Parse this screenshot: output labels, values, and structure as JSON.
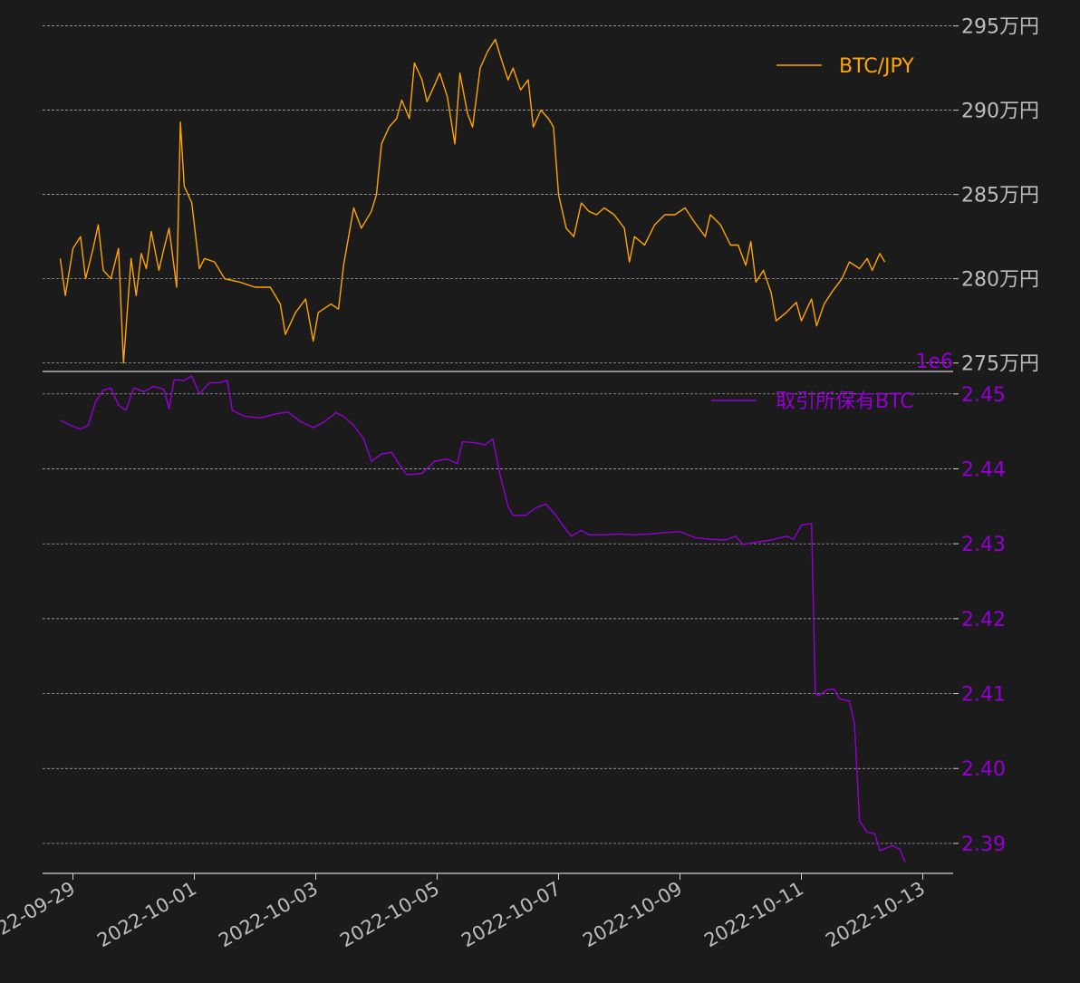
{
  "colors": {
    "background": "#1b1b1b",
    "grid": "#bdbdbd",
    "axis": "#d0d0d0",
    "tick_text": "#bdbdbd",
    "btc_jpy": "#ffa500",
    "exchange_btc": "#9400d3"
  },
  "chart_data": [
    {
      "type": "line",
      "panel": "top",
      "title": "",
      "xlabel": "",
      "ylabel": "",
      "legend_position": "top-right",
      "grid": "horizontal-dashed",
      "x_range": [
        "2022-09-28T12:00",
        "2022-10-13T12:00"
      ],
      "ylim": [
        2745000,
        2960000
      ],
      "y_ticks": [
        {
          "value": 2750000,
          "label": "275万円"
        },
        {
          "value": 2800000,
          "label": "280万円"
        },
        {
          "value": 2850000,
          "label": "285万円"
        },
        {
          "value": 2900000,
          "label": "290万円"
        },
        {
          "value": 2950000,
          "label": "295万円"
        }
      ],
      "series": [
        {
          "name": "BTC/JPY",
          "color": "#ffa500",
          "points": [
            [
              "2022-09-28T19:00",
              2812000
            ],
            [
              "2022-09-28T21:00",
              2790000
            ],
            [
              "2022-09-29T00:00",
              2818000
            ],
            [
              "2022-09-29T03:00",
              2825000
            ],
            [
              "2022-09-29T05:00",
              2800000
            ],
            [
              "2022-09-29T08:00",
              2818000
            ],
            [
              "2022-09-29T10:00",
              2832000
            ],
            [
              "2022-09-29T12:00",
              2805000
            ],
            [
              "2022-09-29T15:00",
              2800000
            ],
            [
              "2022-09-29T18:00",
              2818000
            ],
            [
              "2022-09-29T20:00",
              2750000
            ],
            [
              "2022-09-29T23:00",
              2812000
            ],
            [
              "2022-09-30T01:00",
              2790000
            ],
            [
              "2022-09-30T03:00",
              2815000
            ],
            [
              "2022-09-30T05:00",
              2806000
            ],
            [
              "2022-09-30T07:00",
              2828000
            ],
            [
              "2022-09-30T10:00",
              2805000
            ],
            [
              "2022-09-30T12:00",
              2818000
            ],
            [
              "2022-09-30T14:00",
              2830000
            ],
            [
              "2022-09-30T17:00",
              2795000
            ],
            [
              "2022-09-30T18:30",
              2893000
            ],
            [
              "2022-09-30T20:00",
              2855000
            ],
            [
              "2022-09-30T23:00",
              2845000
            ],
            [
              "2022-10-01T02:00",
              2806000
            ],
            [
              "2022-10-01T04:00",
              2812000
            ],
            [
              "2022-10-01T08:00",
              2810000
            ],
            [
              "2022-10-01T12:00",
              2800000
            ],
            [
              "2022-10-01T18:00",
              2798000
            ],
            [
              "2022-10-02T00:00",
              2795000
            ],
            [
              "2022-10-02T06:00",
              2795000
            ],
            [
              "2022-10-02T10:00",
              2785000
            ],
            [
              "2022-10-02T12:00",
              2767000
            ],
            [
              "2022-10-02T16:00",
              2780000
            ],
            [
              "2022-10-02T20:00",
              2788000
            ],
            [
              "2022-10-02T23:00",
              2763000
            ],
            [
              "2022-10-03T01:00",
              2780000
            ],
            [
              "2022-10-03T06:00",
              2785000
            ],
            [
              "2022-10-03T09:00",
              2782000
            ],
            [
              "2022-10-03T11:00",
              2808000
            ],
            [
              "2022-10-03T15:00",
              2842000
            ],
            [
              "2022-10-03T18:00",
              2830000
            ],
            [
              "2022-10-03T22:00",
              2840000
            ],
            [
              "2022-10-04T00:00",
              2850000
            ],
            [
              "2022-10-04T02:00",
              2880000
            ],
            [
              "2022-10-04T05:00",
              2890000
            ],
            [
              "2022-10-04T08:00",
              2895000
            ],
            [
              "2022-10-04T10:00",
              2906000
            ],
            [
              "2022-10-04T13:00",
              2895000
            ],
            [
              "2022-10-04T15:00",
              2928000
            ],
            [
              "2022-10-04T18:00",
              2918000
            ],
            [
              "2022-10-04T20:00",
              2905000
            ],
            [
              "2022-10-04T23:00",
              2915000
            ],
            [
              "2022-10-05T01:00",
              2922000
            ],
            [
              "2022-10-05T04:00",
              2908000
            ],
            [
              "2022-10-05T07:00",
              2880000
            ],
            [
              "2022-10-05T09:00",
              2922000
            ],
            [
              "2022-10-05T12:00",
              2898000
            ],
            [
              "2022-10-05T14:00",
              2890000
            ],
            [
              "2022-10-05T17:00",
              2925000
            ],
            [
              "2022-10-05T20:00",
              2935000
            ],
            [
              "2022-10-05T23:00",
              2942000
            ],
            [
              "2022-10-06T01:00",
              2932000
            ],
            [
              "2022-10-06T04:00",
              2918000
            ],
            [
              "2022-10-06T06:00",
              2925000
            ],
            [
              "2022-10-06T09:00",
              2912000
            ],
            [
              "2022-10-06T12:00",
              2918000
            ],
            [
              "2022-10-06T14:00",
              2890000
            ],
            [
              "2022-10-06T17:00",
              2900000
            ],
            [
              "2022-10-06T20:00",
              2895000
            ],
            [
              "2022-10-06T22:00",
              2890000
            ],
            [
              "2022-10-07T00:00",
              2850000
            ],
            [
              "2022-10-07T03:00",
              2830000
            ],
            [
              "2022-10-07T06:00",
              2825000
            ],
            [
              "2022-10-07T09:00",
              2845000
            ],
            [
              "2022-10-07T12:00",
              2840000
            ],
            [
              "2022-10-07T15:00",
              2838000
            ],
            [
              "2022-10-07T18:00",
              2842000
            ],
            [
              "2022-10-07T22:00",
              2838000
            ],
            [
              "2022-10-08T02:00",
              2830000
            ],
            [
              "2022-10-08T04:00",
              2810000
            ],
            [
              "2022-10-08T06:00",
              2825000
            ],
            [
              "2022-10-08T10:00",
              2820000
            ],
            [
              "2022-10-08T14:00",
              2832000
            ],
            [
              "2022-10-08T18:00",
              2838000
            ],
            [
              "2022-10-08T22:00",
              2838000
            ],
            [
              "2022-10-09T02:00",
              2842000
            ],
            [
              "2022-10-09T06:00",
              2833000
            ],
            [
              "2022-10-09T10:00",
              2825000
            ],
            [
              "2022-10-09T12:00",
              2838000
            ],
            [
              "2022-10-09T16:00",
              2832000
            ],
            [
              "2022-10-09T20:00",
              2820000
            ],
            [
              "2022-10-09T23:00",
              2820000
            ],
            [
              "2022-10-10T02:00",
              2808000
            ],
            [
              "2022-10-10T04:00",
              2822000
            ],
            [
              "2022-10-10T06:00",
              2798000
            ],
            [
              "2022-10-10T09:00",
              2805000
            ],
            [
              "2022-10-10T12:00",
              2792000
            ],
            [
              "2022-10-10T14:00",
              2775000
            ],
            [
              "2022-10-10T18:00",
              2780000
            ],
            [
              "2022-10-10T22:00",
              2786000
            ],
            [
              "2022-10-11T00:00",
              2775000
            ],
            [
              "2022-10-11T04:00",
              2788000
            ],
            [
              "2022-10-11T06:00",
              2772000
            ],
            [
              "2022-10-11T09:00",
              2785000
            ],
            [
              "2022-10-11T12:00",
              2792000
            ],
            [
              "2022-10-11T16:00",
              2800000
            ],
            [
              "2022-10-11T19:00",
              2810000
            ],
            [
              "2022-10-11T23:00",
              2806000
            ],
            [
              "2022-10-12T02:00",
              2812000
            ],
            [
              "2022-10-12T04:00",
              2805000
            ],
            [
              "2022-10-12T07:00",
              2815000
            ],
            [
              "2022-10-12T09:00",
              2810000
            ]
          ]
        }
      ]
    },
    {
      "type": "line",
      "panel": "bottom",
      "title": "",
      "xlabel": "",
      "ylabel": "",
      "y_offset_label": "1e6",
      "legend_position": "top-right",
      "grid": "horizontal-dashed",
      "x_range": [
        "2022-09-28T12:00",
        "2022-10-13T12:00"
      ],
      "ylim": [
        2386000,
        2453000
      ],
      "y_ticks": [
        {
          "value": 2390000,
          "label": "2.39"
        },
        {
          "value": 2400000,
          "label": "2.40"
        },
        {
          "value": 2410000,
          "label": "2.41"
        },
        {
          "value": 2420000,
          "label": "2.42"
        },
        {
          "value": 2430000,
          "label": "2.43"
        },
        {
          "value": 2440000,
          "label": "2.44"
        },
        {
          "value": 2450000,
          "label": "2.45"
        }
      ],
      "x_ticks": [
        "2022-09-29",
        "2022-10-01",
        "2022-10-03",
        "2022-10-05",
        "2022-10-07",
        "2022-10-09",
        "2022-10-11",
        "2022-10-13"
      ],
      "series": [
        {
          "name": "取引所保有BTC",
          "color": "#9400d3",
          "points": [
            [
              "2022-09-28T19:00",
              2446500
            ],
            [
              "2022-09-28T23:00",
              2445800
            ],
            [
              "2022-09-29T03:00",
              2445300
            ],
            [
              "2022-09-29T06:00",
              2445800
            ],
            [
              "2022-09-29T09:00",
              2449000
            ],
            [
              "2022-09-29T12:00",
              2450500
            ],
            [
              "2022-09-29T15:00",
              2450800
            ],
            [
              "2022-09-29T18:00",
              2448500
            ],
            [
              "2022-09-29T21:00",
              2447800
            ],
            [
              "2022-09-30T00:00",
              2450800
            ],
            [
              "2022-09-30T04:00",
              2450300
            ],
            [
              "2022-09-30T08:00",
              2451000
            ],
            [
              "2022-09-30T12:00",
              2450600
            ],
            [
              "2022-09-30T14:00",
              2448000
            ],
            [
              "2022-09-30T16:00",
              2451900
            ],
            [
              "2022-09-30T20:00",
              2451800
            ],
            [
              "2022-09-30T23:00",
              2452400
            ],
            [
              "2022-10-01T02:00",
              2450000
            ],
            [
              "2022-10-01T06:00",
              2451500
            ],
            [
              "2022-10-01T10:00",
              2451500
            ],
            [
              "2022-10-01T13:00",
              2451800
            ],
            [
              "2022-10-01T15:00",
              2447800
            ],
            [
              "2022-10-01T20:00",
              2447000
            ],
            [
              "2022-10-02T02:00",
              2446800
            ],
            [
              "2022-10-02T08:00",
              2447300
            ],
            [
              "2022-10-02T13:00",
              2447600
            ],
            [
              "2022-10-02T18:00",
              2446300
            ],
            [
              "2022-10-02T23:00",
              2445500
            ],
            [
              "2022-10-03T03:00",
              2446200
            ],
            [
              "2022-10-03T08:00",
              2447500
            ],
            [
              "2022-10-03T11:00",
              2447000
            ],
            [
              "2022-10-03T15:00",
              2445800
            ],
            [
              "2022-10-03T19:00",
              2444000
            ],
            [
              "2022-10-03T22:00",
              2441000
            ],
            [
              "2022-10-04T02:00",
              2442000
            ],
            [
              "2022-10-04T06:00",
              2442200
            ],
            [
              "2022-10-04T09:00",
              2440600
            ],
            [
              "2022-10-04T12:00",
              2439200
            ],
            [
              "2022-10-04T18:00",
              2439400
            ],
            [
              "2022-10-04T23:00",
              2441000
            ],
            [
              "2022-10-05T04:00",
              2441300
            ],
            [
              "2022-10-05T08:00",
              2440700
            ],
            [
              "2022-10-05T10:00",
              2443600
            ],
            [
              "2022-10-05T15:00",
              2443500
            ],
            [
              "2022-10-05T19:00",
              2443200
            ],
            [
              "2022-10-05T22:00",
              2444000
            ],
            [
              "2022-10-06T01:00",
              2439000
            ],
            [
              "2022-10-06T04:00",
              2435000
            ],
            [
              "2022-10-06T06:00",
              2433800
            ],
            [
              "2022-10-06T11:00",
              2433800
            ],
            [
              "2022-10-06T15:00",
              2434800
            ],
            [
              "2022-10-06T19:00",
              2435300
            ],
            [
              "2022-10-06T23:00",
              2433800
            ],
            [
              "2022-10-07T02:00",
              2432300
            ],
            [
              "2022-10-07T05:00",
              2431000
            ],
            [
              "2022-10-07T09:00",
              2431800
            ],
            [
              "2022-10-07T12:00",
              2431200
            ],
            [
              "2022-10-07T18:00",
              2431200
            ],
            [
              "2022-10-08T00:00",
              2431300
            ],
            [
              "2022-10-08T06:00",
              2431200
            ],
            [
              "2022-10-08T12:00",
              2431300
            ],
            [
              "2022-10-08T18:00",
              2431500
            ],
            [
              "2022-10-09T00:00",
              2431600
            ],
            [
              "2022-10-09T06:00",
              2430800
            ],
            [
              "2022-10-09T12:00",
              2430600
            ],
            [
              "2022-10-09T18:00",
              2430500
            ],
            [
              "2022-10-09T22:00",
              2431000
            ],
            [
              "2022-10-10T01:00",
              2429900
            ],
            [
              "2022-10-10T06:00",
              2430200
            ],
            [
              "2022-10-10T12:00",
              2430500
            ],
            [
              "2022-10-10T18:00",
              2431000
            ],
            [
              "2022-10-10T21:00",
              2430600
            ],
            [
              "2022-10-11T00:00",
              2432500
            ],
            [
              "2022-10-11T04:00",
              2432700
            ],
            [
              "2022-10-11T05:30",
              2410000
            ],
            [
              "2022-10-11T07:00",
              2409700
            ],
            [
              "2022-10-11T10:00",
              2410500
            ],
            [
              "2022-10-11T13:00",
              2410600
            ],
            [
              "2022-10-11T15:00",
              2409300
            ],
            [
              "2022-10-11T19:00",
              2409000
            ],
            [
              "2022-10-11T21:00",
              2406000
            ],
            [
              "2022-10-11T23:00",
              2393000
            ],
            [
              "2022-10-12T02:00",
              2391500
            ],
            [
              "2022-10-12T05:00",
              2391300
            ],
            [
              "2022-10-12T07:00",
              2389000
            ],
            [
              "2022-10-12T09:00",
              2389300
            ],
            [
              "2022-10-12T12:00",
              2389700
            ],
            [
              "2022-10-12T15:00",
              2389200
            ],
            [
              "2022-10-12T17:00",
              2387500
            ]
          ]
        }
      ]
    }
  ]
}
